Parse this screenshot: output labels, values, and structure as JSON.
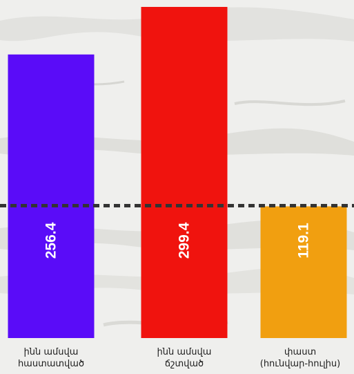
{
  "chart_data": {
    "type": "bar",
    "categories": [
      [
        "ինն ամսվա",
        "հաստատված"
      ],
      [
        "ինն ամսվա",
        "ճշտված"
      ],
      [
        "փաստ",
        "(հունվար-հուլիս)"
      ]
    ],
    "values": [
      256.4,
      299.4,
      119.1
    ],
    "data_labels": [
      "256.4",
      "299.4",
      "119.1"
    ],
    "colors": [
      "#5a0cf8",
      "#f0130e",
      "#f19f10"
    ],
    "reference_line": {
      "value": 119.1,
      "style": "dashed",
      "color": "#333333"
    },
    "ylim": [
      0,
      299.4
    ],
    "grid": false,
    "legend": "none",
    "data_label_orientation": "vertical"
  }
}
